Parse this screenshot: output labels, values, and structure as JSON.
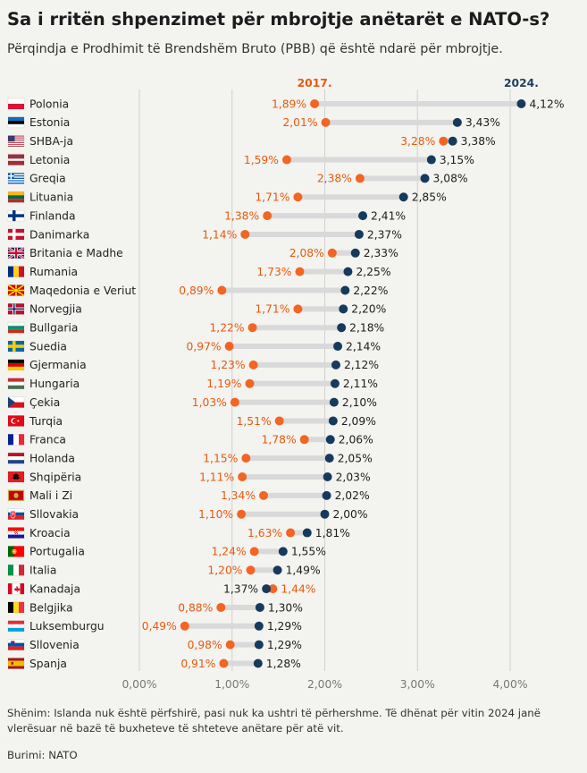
{
  "header": {
    "title": "Sa i rritën shpenzimet për mbrojtje anëtarët e NATO-s?",
    "subtitle": "Përqindja e Prodhimit të Brendshëm Bruto (PBB) që është ndarë për mbrojtje."
  },
  "footer": {
    "note": "Shënim: Islanda nuk është përfshirë, pasi nuk ka ushtri të përhershme. Të dhënat për vitin 2024 janë vlerësuar në bazë të buxheteve të shteteve anëtare për atë vit.",
    "source": "Burimi: NATO"
  },
  "colors": {
    "y2017": "#f26522",
    "y2024": "#163a5c",
    "connector": "#d9d9d9",
    "grid": "#cfcfcf"
  },
  "chart_data": {
    "type": "dumbbell",
    "title": "Sa i rritën shpenzimet për mbrojtje anëtarët e NATO-s?",
    "xlim": [
      0,
      4
    ],
    "x_ticks": [
      0,
      1,
      2,
      3,
      4
    ],
    "x_tick_labels": [
      "0,00%",
      "1,00%",
      "2,00%",
      "3,00%",
      "4,00%"
    ],
    "series": [
      {
        "name": "2017.",
        "color": "#f26522"
      },
      {
        "name": "2024.",
        "color": "#163a5c"
      }
    ],
    "rows": [
      {
        "country": "Polonia",
        "flag": "pl",
        "v2017": 1.89,
        "v2024": 4.12,
        "l2017": "1,89%",
        "l2024": "4,12%"
      },
      {
        "country": "Estonia",
        "flag": "ee",
        "v2017": 2.01,
        "v2024": 3.43,
        "l2017": "2,01%",
        "l2024": "3,43%"
      },
      {
        "country": "SHBA-ja",
        "flag": "us",
        "v2017": 3.28,
        "v2024": 3.38,
        "l2017": "3,28%",
        "l2024": "3,38%"
      },
      {
        "country": "Letonia",
        "flag": "lv",
        "v2017": 1.59,
        "v2024": 3.15,
        "l2017": "1,59%",
        "l2024": "3,15%"
      },
      {
        "country": "Greqia",
        "flag": "gr",
        "v2017": 2.38,
        "v2024": 3.08,
        "l2017": "2,38%",
        "l2024": "3,08%"
      },
      {
        "country": "Lituania",
        "flag": "lt",
        "v2017": 1.71,
        "v2024": 2.85,
        "l2017": "1,71%",
        "l2024": "2,85%"
      },
      {
        "country": "Finlanda",
        "flag": "fi",
        "v2017": 1.38,
        "v2024": 2.41,
        "l2017": "1,38%",
        "l2024": "2,41%"
      },
      {
        "country": "Danimarka",
        "flag": "dk",
        "v2017": 1.14,
        "v2024": 2.37,
        "l2017": "1,14%",
        "l2024": "2,37%"
      },
      {
        "country": "Britania e Madhe",
        "flag": "gb",
        "v2017": 2.08,
        "v2024": 2.33,
        "l2017": "2,08%",
        "l2024": "2,33%"
      },
      {
        "country": "Rumania",
        "flag": "ro",
        "v2017": 1.73,
        "v2024": 2.25,
        "l2017": "1,73%",
        "l2024": "2,25%"
      },
      {
        "country": "Maqedonia e Veriut",
        "flag": "mk",
        "v2017": 0.89,
        "v2024": 2.22,
        "l2017": "0,89%",
        "l2024": "2,22%"
      },
      {
        "country": "Norvegjia",
        "flag": "no",
        "v2017": 1.71,
        "v2024": 2.2,
        "l2017": "1,71%",
        "l2024": "2,20%"
      },
      {
        "country": "Bullgaria",
        "flag": "bg",
        "v2017": 1.22,
        "v2024": 2.18,
        "l2017": "1,22%",
        "l2024": "2,18%"
      },
      {
        "country": "Suedia",
        "flag": "se",
        "v2017": 0.97,
        "v2024": 2.14,
        "l2017": "0,97%",
        "l2024": "2,14%"
      },
      {
        "country": "Gjermania",
        "flag": "de",
        "v2017": 1.23,
        "v2024": 2.12,
        "l2017": "1,23%",
        "l2024": "2,12%"
      },
      {
        "country": "Hungaria",
        "flag": "hu",
        "v2017": 1.19,
        "v2024": 2.11,
        "l2017": "1,19%",
        "l2024": "2,11%"
      },
      {
        "country": "Çekia",
        "flag": "cz",
        "v2017": 1.03,
        "v2024": 2.1,
        "l2017": "1,03%",
        "l2024": "2,10%"
      },
      {
        "country": "Turqia",
        "flag": "tr",
        "v2017": 1.51,
        "v2024": 2.09,
        "l2017": "1,51%",
        "l2024": "2,09%"
      },
      {
        "country": "Franca",
        "flag": "fr",
        "v2017": 1.78,
        "v2024": 2.06,
        "l2017": "1,78%",
        "l2024": "2,06%"
      },
      {
        "country": "Holanda",
        "flag": "nl",
        "v2017": 1.15,
        "v2024": 2.05,
        "l2017": "1,15%",
        "l2024": "2,05%"
      },
      {
        "country": "Shqipëria",
        "flag": "al",
        "v2017": 1.11,
        "v2024": 2.03,
        "l2017": "1,11%",
        "l2024": "2,03%"
      },
      {
        "country": "Mali i Zi",
        "flag": "me",
        "v2017": 1.34,
        "v2024": 2.02,
        "l2017": "1,34%",
        "l2024": "2,02%"
      },
      {
        "country": "Sllovakia",
        "flag": "sk",
        "v2017": 1.1,
        "v2024": 2.0,
        "l2017": "1,10%",
        "l2024": "2,00%"
      },
      {
        "country": "Kroacia",
        "flag": "hr",
        "v2017": 1.63,
        "v2024": 1.81,
        "l2017": "1,63%",
        "l2024": "1,81%"
      },
      {
        "country": "Portugalia",
        "flag": "pt",
        "v2017": 1.24,
        "v2024": 1.55,
        "l2017": "1,24%",
        "l2024": "1,55%"
      },
      {
        "country": "Italia",
        "flag": "it",
        "v2017": 1.2,
        "v2024": 1.49,
        "l2017": "1,20%",
        "l2024": "1,49%"
      },
      {
        "country": "Kanadaja",
        "flag": "ca",
        "v2017": 1.44,
        "v2024": 1.37,
        "l2017": "1,44%",
        "l2024": "1,37%"
      },
      {
        "country": "Belgjika",
        "flag": "be",
        "v2017": 0.88,
        "v2024": 1.3,
        "l2017": "0,88%",
        "l2024": "1,30%"
      },
      {
        "country": "Luksemburgu",
        "flag": "lu",
        "v2017": 0.49,
        "v2024": 1.29,
        "l2017": "0,49%",
        "l2024": "1,29%"
      },
      {
        "country": "Sllovenia",
        "flag": "si",
        "v2017": 0.98,
        "v2024": 1.29,
        "l2017": "0,98%",
        "l2024": "1,29%"
      },
      {
        "country": "Spanja",
        "flag": "es",
        "v2017": 0.91,
        "v2024": 1.28,
        "l2017": "0,91%",
        "l2024": "1,28%"
      }
    ]
  }
}
